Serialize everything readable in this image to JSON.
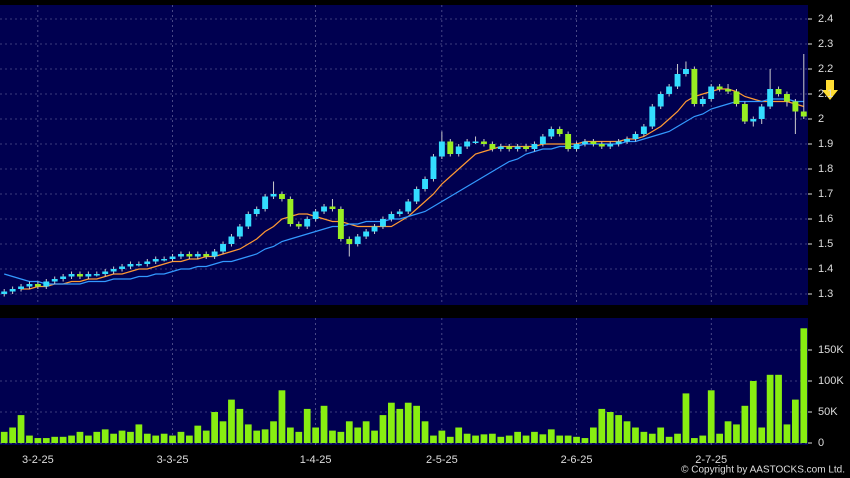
{
  "chart_data": [
    {
      "type": "candlestick",
      "xlim": [
        -0.5,
        95.5
      ],
      "xticks": [
        {
          "value": 4,
          "label": "3-2-25"
        },
        {
          "value": 20,
          "label": "3-3-25"
        },
        {
          "value": 37,
          "label": "1-4-25"
        },
        {
          "value": 52,
          "label": "2-5-25"
        },
        {
          "value": 68,
          "label": "2-6-25"
        },
        {
          "value": 84,
          "label": "2-7-25"
        }
      ],
      "ylim": [
        1.256,
        2.456
      ],
      "yticks": [
        1.3,
        1.4,
        1.5,
        1.6,
        1.7,
        1.8,
        1.9,
        2,
        2.1,
        2.2,
        2.3,
        2.4
      ],
      "grid": true,
      "up_color": "#33ddff",
      "down_color": "#99ee22",
      "open": [
        1.3,
        1.31,
        1.32,
        1.33,
        1.34,
        1.33,
        1.35,
        1.36,
        1.37,
        1.38,
        1.37,
        1.38,
        1.38,
        1.39,
        1.4,
        1.41,
        1.42,
        1.42,
        1.43,
        1.44,
        1.44,
        1.45,
        1.46,
        1.45,
        1.46,
        1.45,
        1.47,
        1.5,
        1.53,
        1.57,
        1.62,
        1.64,
        1.69,
        1.7,
        1.68,
        1.58,
        1.57,
        1.6,
        1.63,
        1.65,
        1.64,
        1.52,
        1.5,
        1.53,
        1.55,
        1.57,
        1.6,
        1.62,
        1.63,
        1.67,
        1.72,
        1.76,
        1.85,
        1.91,
        1.86,
        1.89,
        1.91,
        1.91,
        1.9,
        1.88,
        1.89,
        1.88,
        1.89,
        1.88,
        1.9,
        1.93,
        1.96,
        1.94,
        1.88,
        1.9,
        1.91,
        1.9,
        1.89,
        1.9,
        1.91,
        1.92,
        1.94,
        1.97,
        2.05,
        2.1,
        2.13,
        2.18,
        2.2,
        2.06,
        2.08,
        2.13,
        2.12,
        2.11,
        2.06,
        1.99,
        2.0,
        2.05,
        2.12,
        2.1,
        2.07,
        2.03
      ],
      "high": [
        1.32,
        1.33,
        1.34,
        1.35,
        1.35,
        1.36,
        1.37,
        1.38,
        1.39,
        1.39,
        1.39,
        1.39,
        1.4,
        1.41,
        1.42,
        1.43,
        1.43,
        1.44,
        1.45,
        1.45,
        1.46,
        1.47,
        1.47,
        1.47,
        1.47,
        1.48,
        1.51,
        1.54,
        1.58,
        1.63,
        1.65,
        1.7,
        1.75,
        1.71,
        1.69,
        1.59,
        1.61,
        1.64,
        1.66,
        1.68,
        1.65,
        1.53,
        1.54,
        1.56,
        1.58,
        1.61,
        1.63,
        1.64,
        1.68,
        1.73,
        1.77,
        1.86,
        1.95,
        1.92,
        1.9,
        1.92,
        1.93,
        1.92,
        1.91,
        1.9,
        1.9,
        1.9,
        1.9,
        1.91,
        1.94,
        1.97,
        1.97,
        1.95,
        1.91,
        1.92,
        1.92,
        1.91,
        1.91,
        1.92,
        1.93,
        1.95,
        1.98,
        2.06,
        2.11,
        2.14,
        2.22,
        2.23,
        2.21,
        2.09,
        2.14,
        2.14,
        2.14,
        2.12,
        2.07,
        2.01,
        2.06,
        2.2,
        2.13,
        2.11,
        2.08,
        2.26
      ],
      "low": [
        1.29,
        1.3,
        1.31,
        1.32,
        1.32,
        1.32,
        1.34,
        1.35,
        1.36,
        1.36,
        1.36,
        1.37,
        1.37,
        1.38,
        1.39,
        1.4,
        1.41,
        1.41,
        1.42,
        1.43,
        1.43,
        1.44,
        1.44,
        1.44,
        1.44,
        1.44,
        1.46,
        1.49,
        1.52,
        1.56,
        1.61,
        1.63,
        1.68,
        1.67,
        1.57,
        1.56,
        1.56,
        1.59,
        1.62,
        1.63,
        1.51,
        1.45,
        1.49,
        1.52,
        1.54,
        1.56,
        1.59,
        1.61,
        1.62,
        1.66,
        1.71,
        1.75,
        1.84,
        1.85,
        1.85,
        1.88,
        1.9,
        1.89,
        1.87,
        1.87,
        1.87,
        1.87,
        1.87,
        1.87,
        1.89,
        1.92,
        1.93,
        1.87,
        1.87,
        1.89,
        1.89,
        1.88,
        1.88,
        1.89,
        1.9,
        1.91,
        1.93,
        1.96,
        2.04,
        2.09,
        2.12,
        2.17,
        2.05,
        2.05,
        2.07,
        2.11,
        2.1,
        2.05,
        1.98,
        1.97,
        1.98,
        2.04,
        2.09,
        2.05,
        1.94,
        2.0
      ],
      "close": [
        1.31,
        1.32,
        1.33,
        1.34,
        1.33,
        1.35,
        1.36,
        1.37,
        1.38,
        1.37,
        1.38,
        1.38,
        1.39,
        1.4,
        1.41,
        1.42,
        1.42,
        1.43,
        1.44,
        1.44,
        1.45,
        1.46,
        1.45,
        1.46,
        1.45,
        1.47,
        1.5,
        1.53,
        1.57,
        1.62,
        1.64,
        1.69,
        1.7,
        1.68,
        1.58,
        1.57,
        1.6,
        1.63,
        1.65,
        1.64,
        1.52,
        1.5,
        1.53,
        1.55,
        1.57,
        1.6,
        1.62,
        1.63,
        1.67,
        1.72,
        1.76,
        1.85,
        1.91,
        1.86,
        1.89,
        1.91,
        1.91,
        1.9,
        1.88,
        1.89,
        1.88,
        1.89,
        1.88,
        1.9,
        1.93,
        1.96,
        1.94,
        1.88,
        1.9,
        1.91,
        1.9,
        1.89,
        1.9,
        1.91,
        1.92,
        1.94,
        1.97,
        2.05,
        2.1,
        2.13,
        2.18,
        2.2,
        2.06,
        2.08,
        2.13,
        2.12,
        2.11,
        2.06,
        1.99,
        2.0,
        2.05,
        2.12,
        2.1,
        2.07,
        2.03,
        2.01
      ],
      "lines": [
        {
          "color": "#ff9933",
          "values": [
            null,
            null,
            1.32,
            1.32,
            1.33,
            1.33,
            1.34,
            1.34,
            1.35,
            1.35,
            1.36,
            1.36,
            1.37,
            1.38,
            1.38,
            1.39,
            1.4,
            1.4,
            1.41,
            1.42,
            1.43,
            1.43,
            1.44,
            1.44,
            1.45,
            1.45,
            1.46,
            1.47,
            1.48,
            1.5,
            1.52,
            1.55,
            1.57,
            1.6,
            1.61,
            1.62,
            1.62,
            1.61,
            1.6,
            1.59,
            1.59,
            1.58,
            1.57,
            1.57,
            1.57,
            1.57,
            1.57,
            1.59,
            1.61,
            1.64,
            1.67,
            1.7,
            1.74,
            1.77,
            1.8,
            1.83,
            1.86,
            1.87,
            1.88,
            1.89,
            1.89,
            1.89,
            1.89,
            1.89,
            1.9,
            1.9,
            1.9,
            1.9,
            1.9,
            1.91,
            1.91,
            1.91,
            1.91,
            1.91,
            1.92,
            1.92,
            1.93,
            1.95,
            1.97,
            2.0,
            2.03,
            2.07,
            2.09,
            2.1,
            2.11,
            2.12,
            2.12,
            2.11,
            2.09,
            2.08,
            2.07,
            2.07,
            2.07,
            2.07,
            2.06,
            2.05
          ]
        },
        {
          "color": "#3399ff",
          "values": [
            1.38,
            1.37,
            1.36,
            1.35,
            1.35,
            1.34,
            1.34,
            1.34,
            1.34,
            1.34,
            1.35,
            1.35,
            1.35,
            1.36,
            1.36,
            1.36,
            1.37,
            1.37,
            1.38,
            1.38,
            1.39,
            1.4,
            1.4,
            1.41,
            1.41,
            1.42,
            1.43,
            1.43,
            1.44,
            1.45,
            1.46,
            1.48,
            1.49,
            1.51,
            1.52,
            1.53,
            1.54,
            1.55,
            1.56,
            1.57,
            1.57,
            1.58,
            1.58,
            1.59,
            1.59,
            1.59,
            1.6,
            1.6,
            1.61,
            1.62,
            1.63,
            1.65,
            1.67,
            1.69,
            1.71,
            1.73,
            1.75,
            1.77,
            1.79,
            1.81,
            1.83,
            1.84,
            1.86,
            1.87,
            1.88,
            1.88,
            1.89,
            1.89,
            1.89,
            1.9,
            1.9,
            1.9,
            1.9,
            1.9,
            1.91,
            1.91,
            1.92,
            1.93,
            1.94,
            1.95,
            1.97,
            1.99,
            2.01,
            2.02,
            2.04,
            2.05,
            2.06,
            2.07,
            2.07,
            2.07,
            2.07,
            2.08,
            2.08,
            2.08,
            2.07,
            2.07
          ]
        }
      ]
    },
    {
      "type": "bar",
      "xlim": [
        -0.5,
        95.5
      ],
      "ylim": [
        -3200,
        201600
      ],
      "yticks": [
        0,
        {
          "value": 50000,
          "label": "50K"
        },
        {
          "value": 100000,
          "label": "100K"
        },
        {
          "value": 150000,
          "label": "150K"
        }
      ],
      "grid": true,
      "color": "#88ee11",
      "values": [
        18000,
        25000,
        45000,
        12000,
        8000,
        8000,
        10000,
        10000,
        12000,
        18000,
        12000,
        18000,
        22000,
        15000,
        20000,
        18000,
        30000,
        15000,
        12000,
        15000,
        12000,
        18000,
        12000,
        28000,
        20000,
        50000,
        35000,
        70000,
        55000,
        30000,
        20000,
        22000,
        35000,
        85000,
        25000,
        18000,
        55000,
        25000,
        60000,
        20000,
        18000,
        35000,
        25000,
        35000,
        20000,
        45000,
        65000,
        55000,
        65000,
        60000,
        35000,
        12000,
        20000,
        10000,
        25000,
        15000,
        12000,
        14000,
        15000,
        10000,
        12000,
        18000,
        12000,
        18000,
        14000,
        22000,
        12000,
        12000,
        10000,
        8000,
        25000,
        55000,
        50000,
        45000,
        35000,
        25000,
        18000,
        15000,
        25000,
        10000,
        15000,
        80000,
        8000,
        12000,
        85000,
        15000,
        35000,
        30000,
        60000,
        100000,
        25000,
        110000,
        110000,
        30000,
        70000,
        185000
      ]
    }
  ],
  "copyright": "© Copyright by AASTOCKS.com Ltd."
}
